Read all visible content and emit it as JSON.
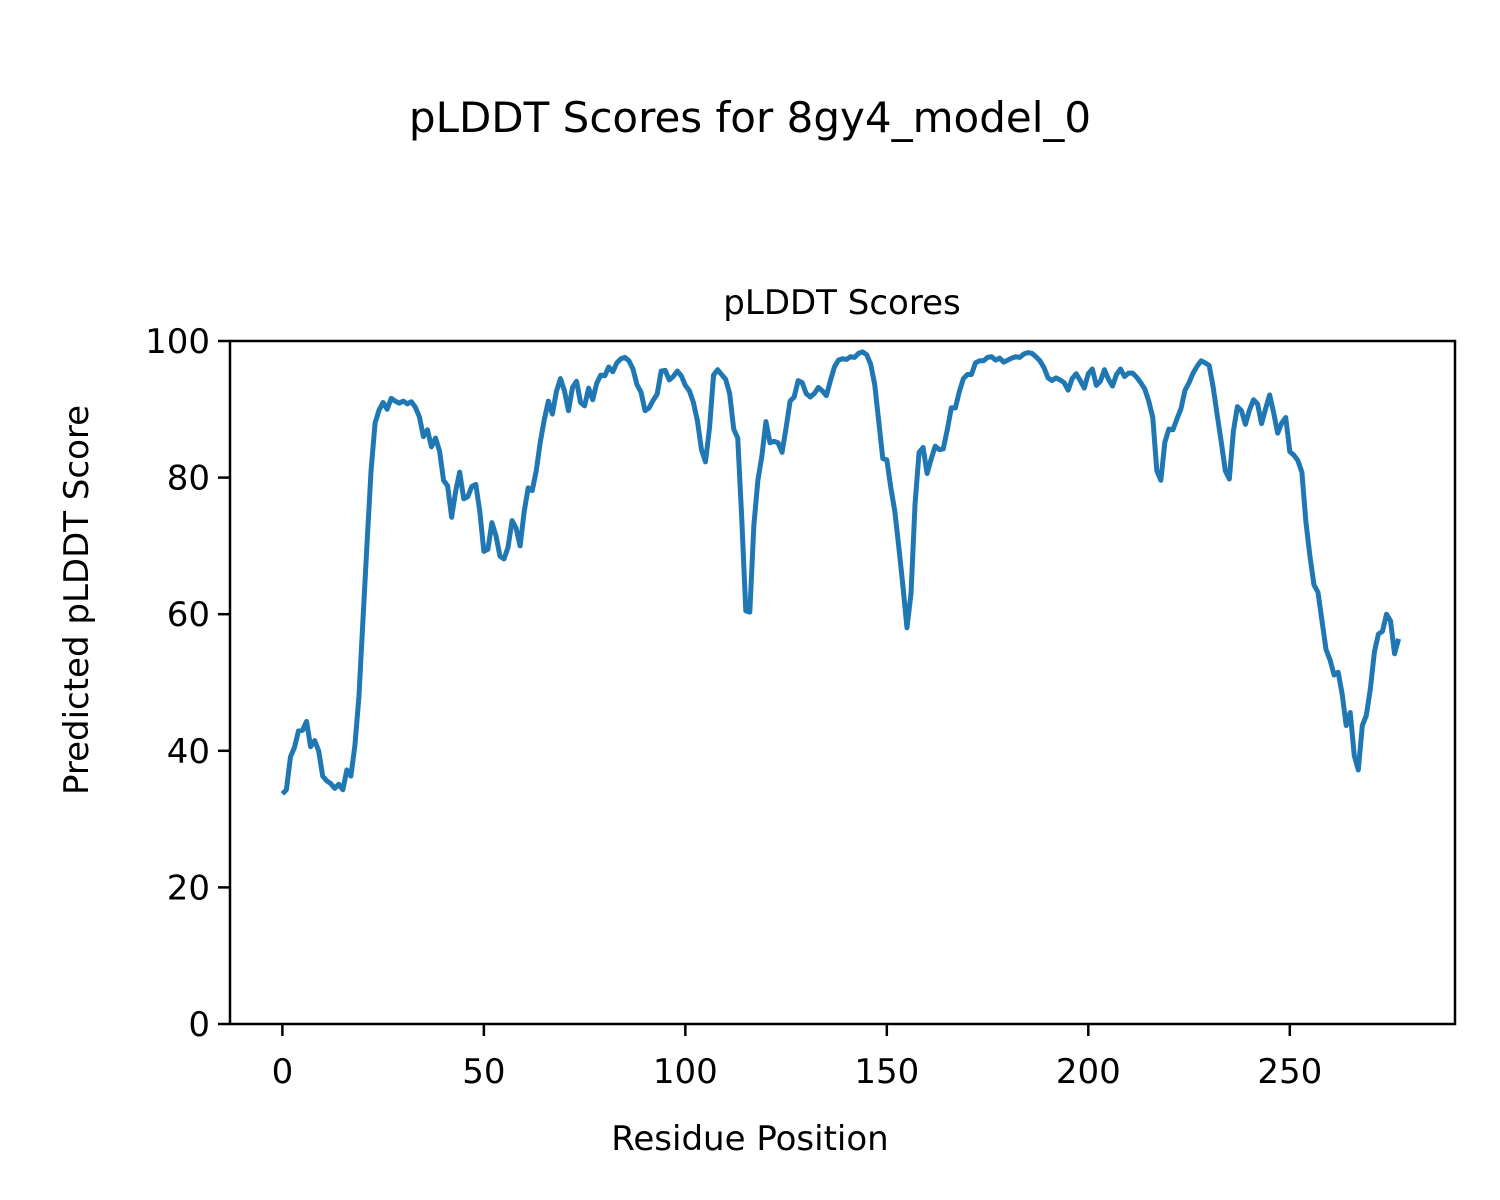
{
  "figure": {
    "suptitle": "pLDDT Scores for 8gy4_model_0"
  },
  "chart_data": {
    "type": "line",
    "title": "pLDDT Scores",
    "xlabel": "Residue Position",
    "ylabel": "Predicted pLDDT Score",
    "xlim": [
      -13,
      291
    ],
    "ylim": [
      0,
      100
    ],
    "xticks": [
      0,
      50,
      100,
      150,
      200,
      250
    ],
    "yticks": [
      0,
      20,
      40,
      60,
      80,
      100
    ],
    "grid": false,
    "line_color": "#1f77b4",
    "series": [
      {
        "x": [
          0,
          1,
          2,
          3,
          4,
          5,
          6,
          7,
          8,
          9,
          10,
          11,
          12,
          13,
          14,
          15,
          16,
          17,
          18,
          19,
          20,
          21,
          22,
          23,
          24,
          25,
          26,
          27,
          28,
          29,
          30,
          31,
          32,
          33,
          34,
          35,
          36,
          37,
          38,
          39,
          40,
          41,
          42,
          43,
          44,
          45,
          46,
          47,
          48,
          49,
          50,
          51,
          52,
          53,
          54,
          55,
          56,
          57,
          58,
          59,
          60,
          61,
          62,
          63,
          64,
          65,
          66,
          67,
          68,
          69,
          70,
          71,
          72,
          73,
          74,
          75,
          76,
          77,
          78,
          79,
          80,
          81,
          82,
          83,
          84,
          85,
          86,
          87,
          88,
          89,
          90,
          91,
          92,
          93,
          94,
          95,
          96,
          97,
          98,
          99,
          100,
          101,
          102,
          103,
          104,
          105,
          106,
          107,
          108,
          109,
          110,
          111,
          112,
          113,
          114,
          115,
          116,
          117,
          118,
          119,
          120,
          121,
          122,
          123,
          124,
          125,
          126,
          127,
          128,
          129,
          130,
          131,
          132,
          133,
          134,
          135,
          136,
          137,
          138,
          139,
          140,
          141,
          142,
          143,
          144,
          145,
          146,
          147,
          148,
          149,
          150,
          151,
          152,
          153,
          154,
          155,
          156,
          157,
          158,
          159,
          160,
          161,
          162,
          163,
          164,
          165,
          166,
          167,
          168,
          169,
          170,
          171,
          172,
          173,
          174,
          175,
          176,
          177,
          178,
          179,
          180,
          181,
          182,
          183,
          184,
          185,
          186,
          187,
          188,
          189,
          190,
          191,
          192,
          193,
          194,
          195,
          196,
          197,
          198,
          199,
          200,
          201,
          202,
          203,
          204,
          205,
          206,
          207,
          208,
          209,
          210,
          211,
          212,
          213,
          214,
          215,
          216,
          217,
          218,
          219,
          220,
          221,
          222,
          223,
          224,
          225,
          226,
          227,
          228,
          229,
          230,
          231,
          232,
          233,
          234,
          235,
          236,
          237,
          238,
          239,
          240,
          241,
          242,
          243,
          244,
          245,
          246,
          247,
          248,
          249,
          250,
          251,
          252,
          253,
          254,
          255,
          256,
          257,
          258,
          259,
          260,
          261,
          262,
          263,
          264,
          265,
          266,
          267,
          268,
          269,
          270,
          271,
          272,
          273,
          274,
          275,
          276,
          277
        ],
        "values": [
          33.7,
          34.3,
          39.1,
          40.5,
          42.9,
          43.0,
          44.3,
          40.6,
          41.5,
          40.0,
          36.3,
          35.6,
          35.2,
          34.5,
          35.1,
          34.3,
          37.2,
          36.3,
          40.8,
          48.0,
          59.2,
          70.3,
          81.0,
          88.0,
          89.9,
          91.0,
          90.0,
          91.6,
          91.2,
          90.9,
          91.2,
          90.8,
          91.1,
          90.3,
          88.9,
          86.0,
          87.0,
          84.5,
          85.8,
          83.9,
          79.6,
          78.8,
          74.2,
          78.0,
          80.8,
          76.9,
          77.2,
          78.7,
          79.0,
          75.0,
          69.2,
          69.5,
          73.4,
          71.5,
          68.5,
          68.1,
          69.8,
          73.7,
          72.6,
          70.0,
          75.0,
          78.5,
          78.1,
          81.0,
          85.2,
          88.5,
          91.2,
          89.3,
          92.6,
          94.5,
          92.7,
          89.8,
          93.2,
          94.1,
          91.0,
          90.5,
          93.1,
          91.4,
          93.8,
          95.0,
          94.9,
          96.2,
          95.5,
          96.8,
          97.4,
          97.6,
          97.1,
          95.9,
          93.6,
          92.5,
          89.8,
          90.2,
          91.3,
          92.2,
          95.6,
          95.7,
          94.3,
          94.8,
          95.6,
          94.9,
          93.5,
          92.7,
          91.0,
          88.3,
          84.1,
          82.3,
          87.3,
          95.0,
          95.8,
          95.1,
          94.4,
          92.3,
          87.1,
          85.8,
          74.0,
          60.5,
          60.3,
          73.0,
          79.6,
          83.2,
          88.2,
          85.1,
          85.3,
          85.1,
          83.7,
          87.3,
          91.2,
          91.8,
          94.2,
          93.9,
          92.3,
          91.8,
          92.3,
          93.2,
          92.7,
          92.0,
          94.2,
          96.2,
          97.2,
          97.4,
          97.3,
          97.7,
          97.6,
          98.2,
          98.4,
          98.0,
          96.6,
          93.6,
          88.2,
          82.8,
          82.6,
          78.5,
          75.0,
          69.7,
          64.1,
          58.0,
          63.0,
          76.1,
          83.7,
          84.4,
          80.6,
          82.7,
          84.6,
          84.1,
          84.2,
          87.0,
          90.2,
          90.2,
          92.6,
          94.5,
          95.1,
          95.1,
          96.8,
          97.1,
          97.1,
          97.6,
          97.7,
          97.2,
          97.5,
          96.9,
          97.2,
          97.5,
          97.7,
          97.6,
          98.1,
          98.3,
          98.2,
          97.7,
          97.1,
          96.1,
          94.6,
          94.2,
          94.6,
          94.3,
          93.9,
          92.8,
          94.5,
          95.2,
          94.2,
          93.1,
          95.2,
          95.9,
          93.5,
          94.1,
          95.8,
          94.4,
          93.4,
          95.1,
          95.9,
          94.8,
          95.3,
          95.3,
          94.7,
          93.9,
          93.0,
          91.2,
          88.8,
          81.0,
          79.6,
          85.2,
          87.1,
          87.0,
          88.6,
          90.1,
          92.8,
          93.9,
          95.3,
          96.3,
          97.1,
          96.8,
          96.4,
          93.2,
          89.1,
          85.2,
          81.0,
          79.8,
          86.8,
          90.4,
          89.8,
          87.8,
          89.9,
          91.4,
          90.8,
          87.9,
          90.1,
          92.1,
          89.5,
          86.5,
          88.0,
          88.8,
          83.8,
          83.3,
          82.5,
          80.8,
          73.5,
          68.5,
          64.3,
          63.2,
          59.0,
          54.8,
          53.3,
          51.1,
          51.5,
          48.3,
          43.7,
          45.6,
          39.3,
          37.2,
          43.7,
          45.2,
          49.1,
          54.5,
          57.1,
          57.5,
          60.0,
          59.0,
          54.2,
          56.4
        ]
      }
    ]
  }
}
